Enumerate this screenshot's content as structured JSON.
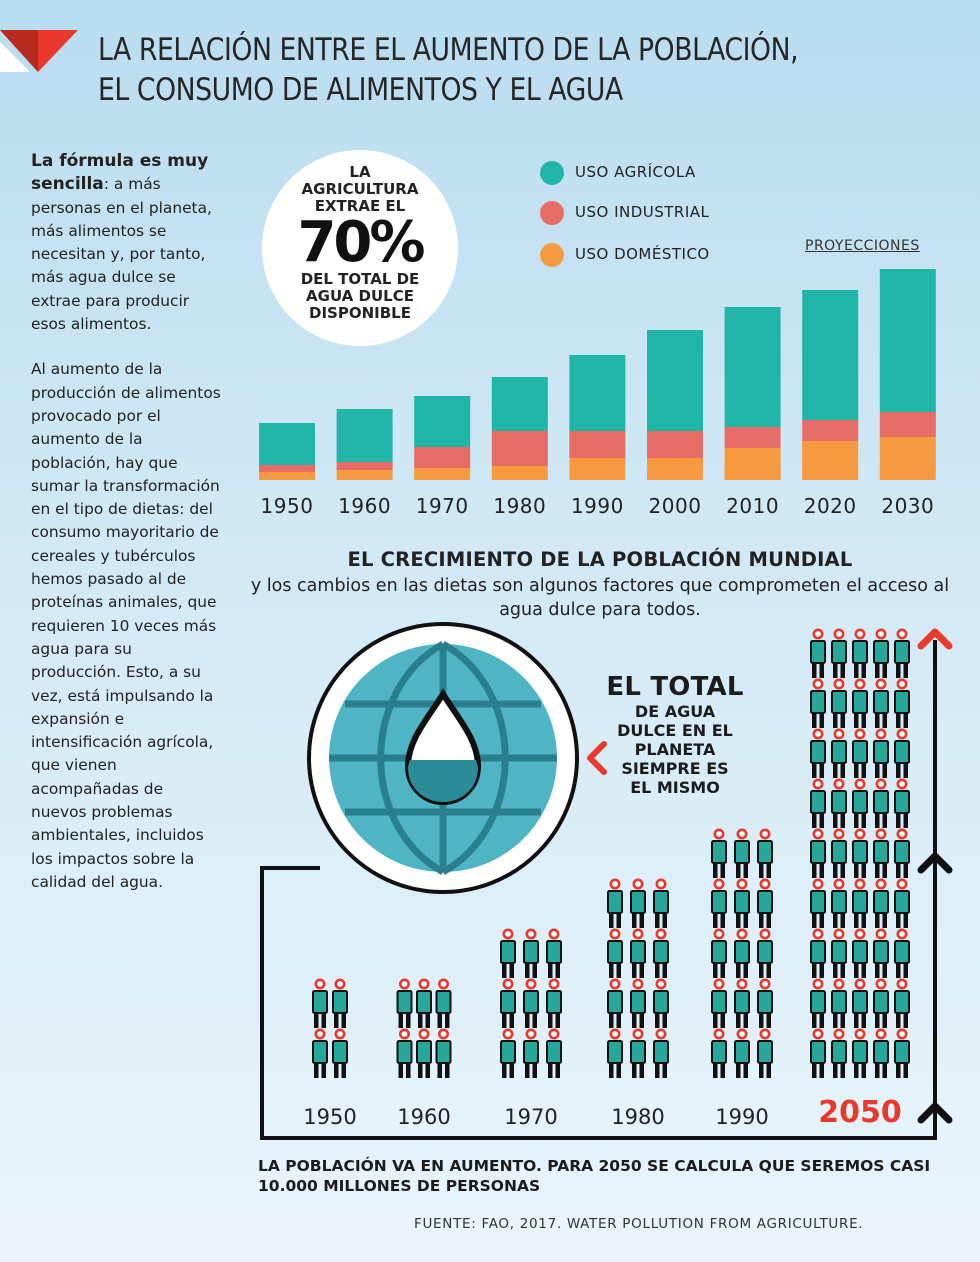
{
  "title": {
    "line1": "LA RELACIÓN ENTRE EL AUMENTO DE LA POBLACIÓN,",
    "line2": "EL CONSUMO DE ALIMENTOS Y EL AGUA"
  },
  "sidebar": {
    "lead": "La fórmula es muy sencilla",
    "lead_colon": ":",
    "para1": "a más personas en el planeta, más alimentos se necesitan y, por tanto, más agua dulce se extrae para producir esos alimentos.",
    "para2": "Al aumento de la producción de alimentos provocado por el aumento de la población, hay que sumar la transformación en el tipo de dietas: del consumo mayoritario de cereales y tubérculos hemos pasado al de proteínas animales, que requieren 10 veces más agua para su producción. Esto, a su vez, está impulsando la expansión e intensificación agrícola, que vienen acompañadas de nuevos problemas ambientales, incluidos los impactos sobre la calidad del agua."
  },
  "highlight": {
    "pre": "LA AGRICULTURA EXTRAE EL",
    "percent": "70%",
    "post": "DEL TOTAL DE AGUA DULCE DISPONIBLE"
  },
  "legend": {
    "agricola": "USO AGRÍCOLA",
    "industrial": "USO INDUSTRIAL",
    "domestico": "USO DOMÉSTICO",
    "projections": "PROYECCIONES"
  },
  "colors": {
    "agricola": "#21b5a8",
    "industrial": "#e76c66",
    "domestico": "#f59a40",
    "accent_red": "#e8392c",
    "globe": "#4fb5c5",
    "person_body": "#26a79a"
  },
  "chart_data": [
    {
      "type": "bar",
      "stacked": true,
      "categories": [
        "1950",
        "1960",
        "1970",
        "1980",
        "1990",
        "2000",
        "2010",
        "2020",
        "2030"
      ],
      "series": [
        {
          "name": "USO DOMÉSTICO",
          "values": [
            8,
            10,
            12,
            14,
            22,
            22,
            32,
            39,
            43
          ]
        },
        {
          "name": "USO INDUSTRIAL",
          "values": [
            7,
            8,
            21,
            35,
            27,
            27,
            21,
            21,
            25
          ]
        },
        {
          "name": "USO AGRÍCOLA",
          "values": [
            42,
            53,
            51,
            54,
            76,
            101,
            120,
            130,
            143
          ]
        }
      ],
      "projection_categories": [
        "2020",
        "2030"
      ],
      "yaxis_shown": false,
      "title": "",
      "xlabel": "",
      "ylabel": ""
    },
    {
      "type": "pictograph",
      "categories": [
        "1950",
        "1960",
        "1970",
        "1980",
        "1990",
        "2050"
      ],
      "icon": "person-icon",
      "columns": [
        2,
        3,
        3,
        3,
        3,
        5
      ],
      "rows": [
        2,
        2,
        3,
        4,
        5,
        9
      ],
      "highlight_category": "2050",
      "title": "",
      "xlabel": "",
      "ylabel": ""
    }
  ],
  "population": {
    "heading": "EL CRECIMIENTO DE LA POBLACIÓN MUNDIAL",
    "subheading": "y los cambios en las dietas son algunos factores que comprometen el acceso al agua dulce para todos.",
    "constant_big": "EL TOTAL",
    "constant_small": "DE AGUA DULCE EN EL PLANETA SIEMPRE ES EL MISMO",
    "bottom": "LA POBLACIÓN VA EN AUMENTO. PARA 2050 SE CALCULA QUE SEREMOS CASI 10.000 MILLONES DE PERSONAS"
  },
  "source": "FUENTE: FAO, 2017. WATER POLLUTION FROM AGRICULTURE."
}
